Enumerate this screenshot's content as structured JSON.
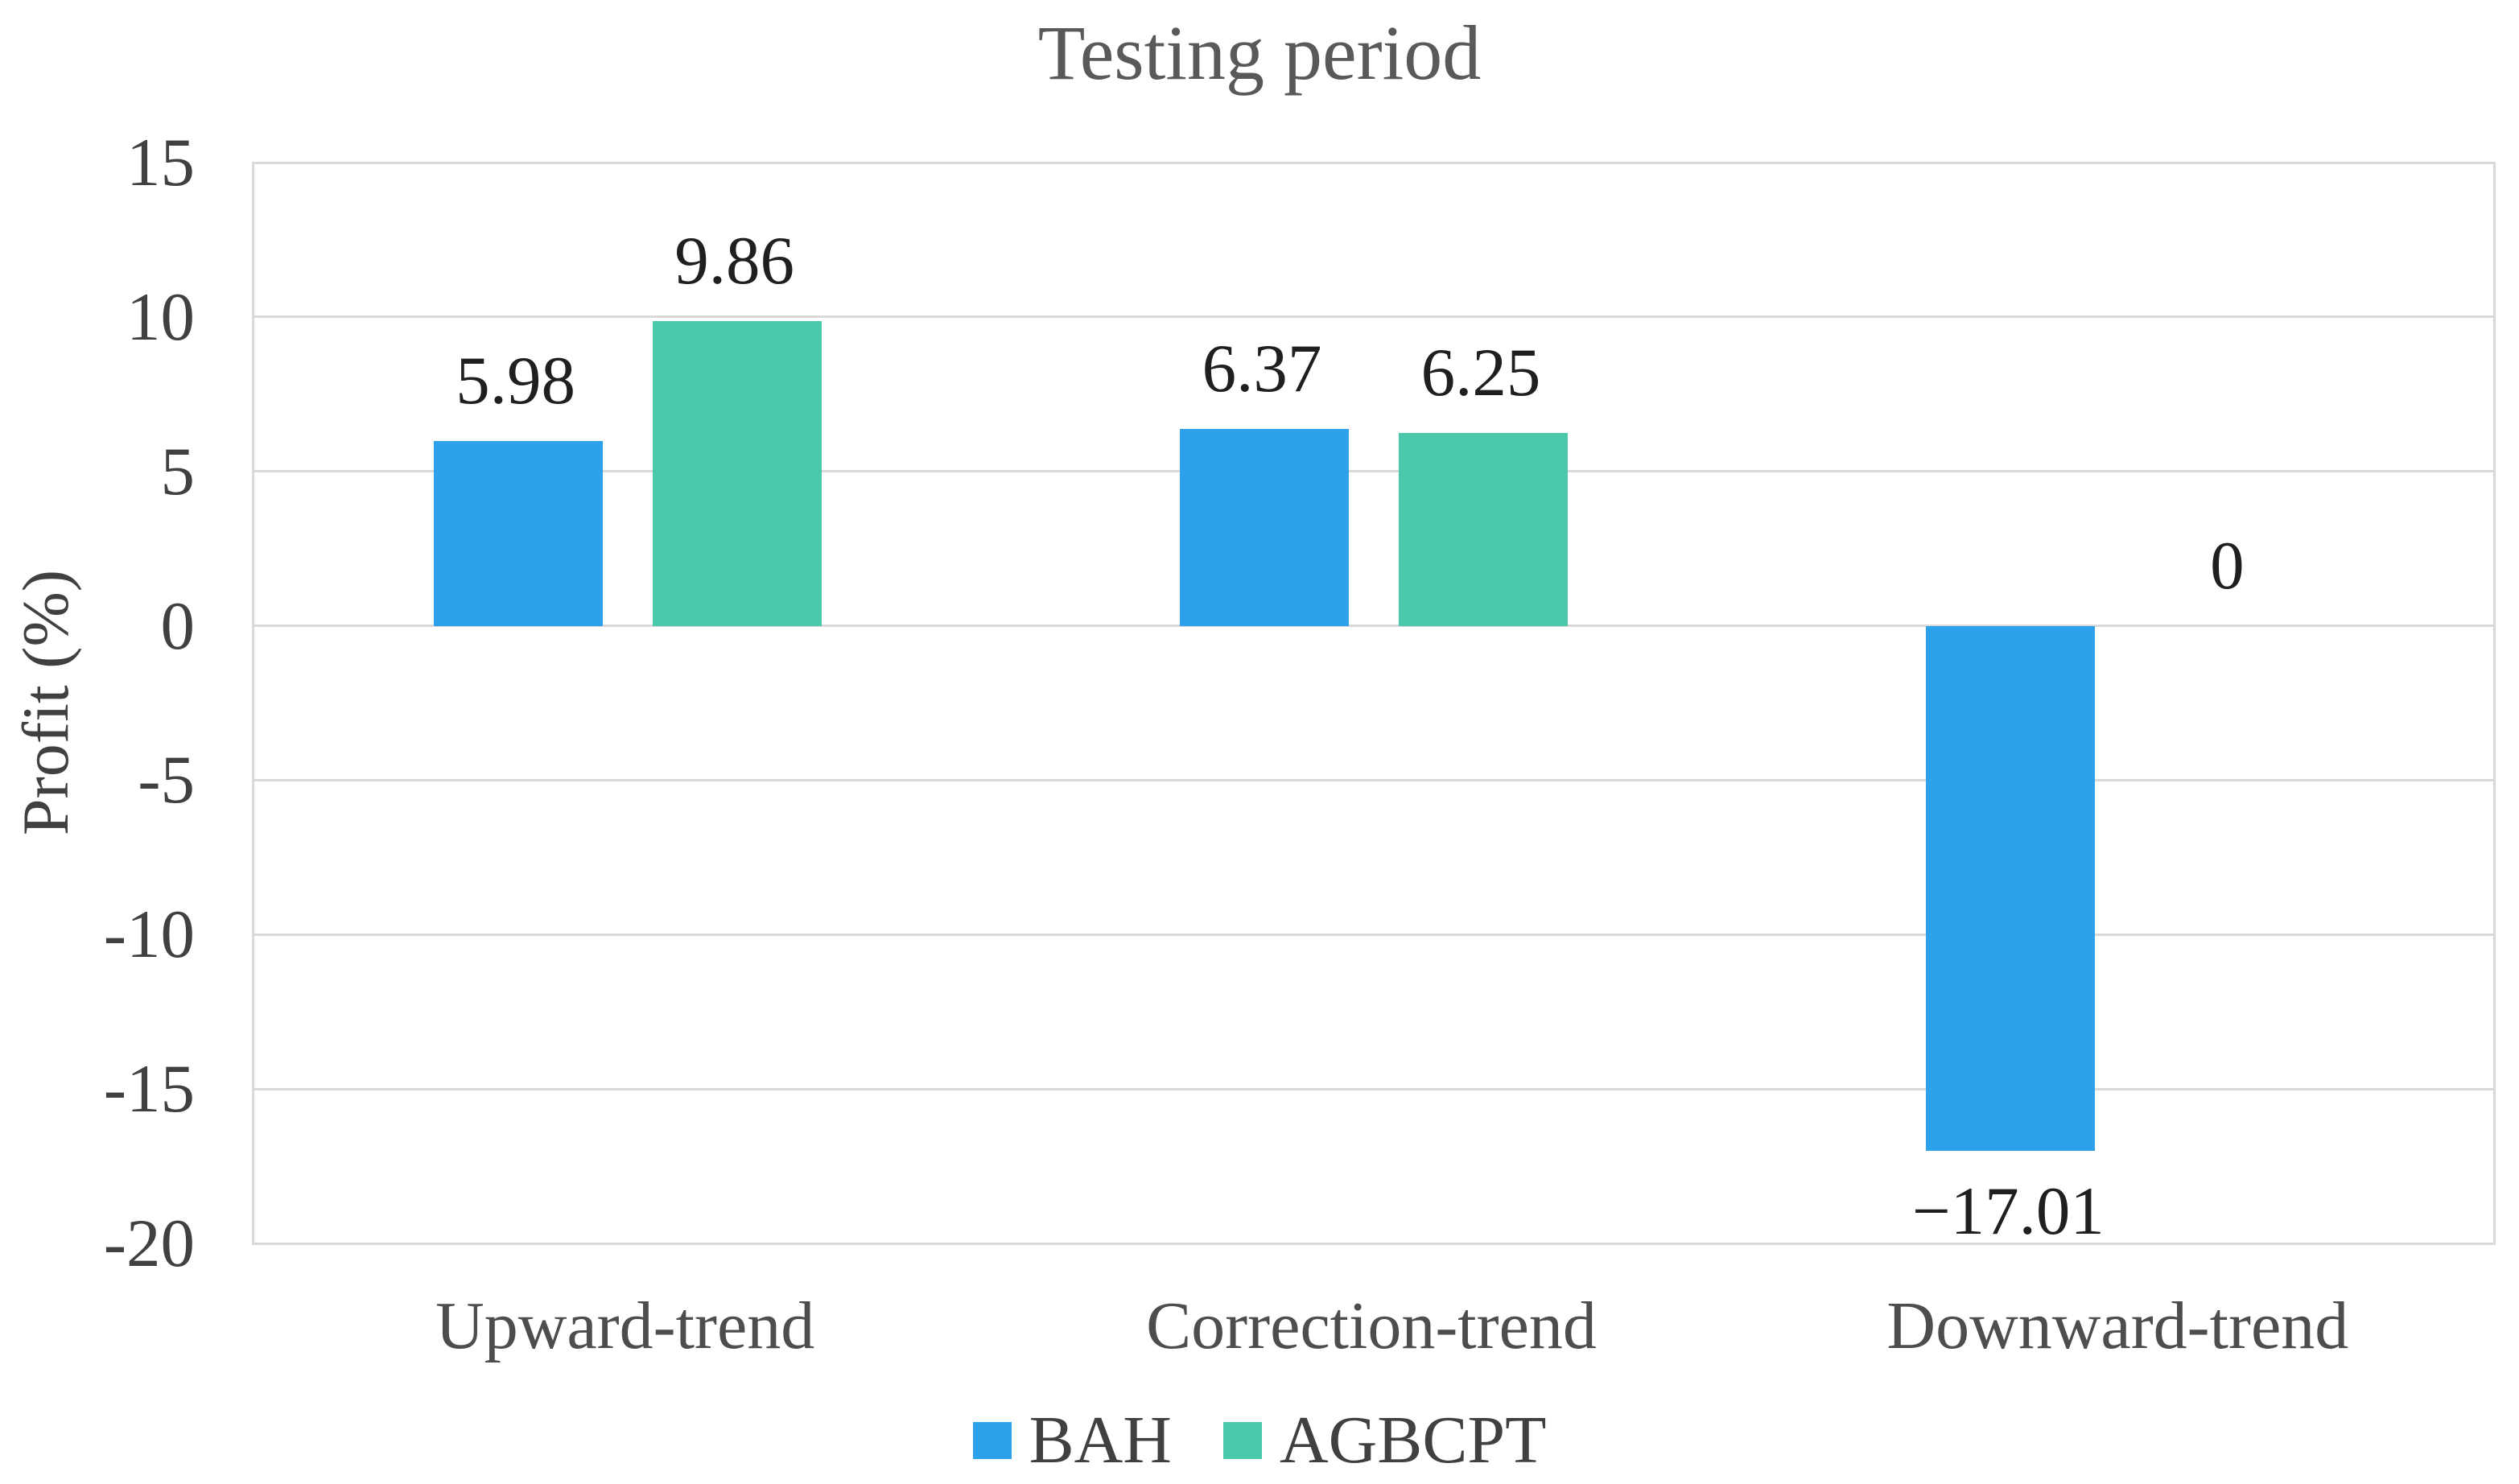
{
  "chart_data": {
    "type": "bar",
    "title": "Testing period",
    "ylabel": "Profit (%)",
    "xlabel": "",
    "categories": [
      "Upward-trend",
      "Correction-trend",
      "Downward-trend"
    ],
    "series": [
      {
        "name": "BAH",
        "color": "#2da1ea",
        "values": [
          5.98,
          6.37,
          -17.01
        ],
        "labels": [
          "5.98",
          "6.37",
          "−17.01"
        ]
      },
      {
        "name": "AGBCPT",
        "color": "#4bc8ac",
        "values": [
          9.86,
          6.25,
          0
        ],
        "labels": [
          "9.86",
          "6.25",
          "0"
        ]
      }
    ],
    "ylim": [
      -20,
      15
    ],
    "y_ticks": [
      15,
      10,
      5,
      0,
      -5,
      -10,
      -15,
      -20
    ],
    "y_tick_labels": [
      "15",
      "10",
      "5",
      "0",
      "-5",
      "-10",
      "-15",
      "-20"
    ],
    "grid": true,
    "legend_position": "bottom",
    "gridline_color": "#d9d9d9",
    "tick_label_color": "#404040",
    "category_label_color": "#4d4d4d",
    "data_label_color": "#1f1f1f",
    "title_color": "#595959",
    "background_color": "#ffffff"
  }
}
